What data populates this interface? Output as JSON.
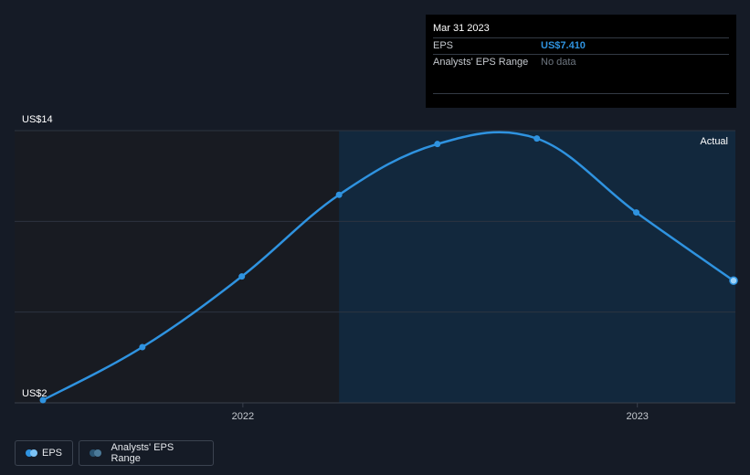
{
  "tooltip": {
    "date": "Mar 31 2023",
    "rows": [
      {
        "label": "EPS",
        "value": "US$7.410"
      },
      {
        "label": "Analysts' EPS Range",
        "value": "No data"
      }
    ]
  },
  "legend": {
    "eps_label": "EPS",
    "range_label": "Analysts' EPS Range"
  },
  "colors": {
    "background": "#151b26",
    "line": "#2f93e0",
    "actual_region": "#12283d",
    "past_region": "#181b22",
    "range_dot": "#3a6a8a"
  },
  "chart_data": {
    "type": "line",
    "series": [
      {
        "name": "EPS",
        "x": [
          "2021-06-30",
          "2021-09-30",
          "2021-12-31",
          "2022-03-31",
          "2022-06-30",
          "2022-09-30",
          "2022-12-31",
          "2023-03-31"
        ],
        "values": [
          2.0,
          4.4,
          7.6,
          11.3,
          13.6,
          13.85,
          10.5,
          7.41
        ]
      }
    ],
    "x_tick_labels": [
      "2022",
      "2023"
    ],
    "x_ticks": [
      "2022-01-01",
      "2023-01-01"
    ],
    "y_tick_labels": [
      "US$14",
      "US$2"
    ],
    "ylim": [
      2,
      14
    ],
    "actual_from": "2022-03-31",
    "region_label": "Actual",
    "grid": true
  }
}
